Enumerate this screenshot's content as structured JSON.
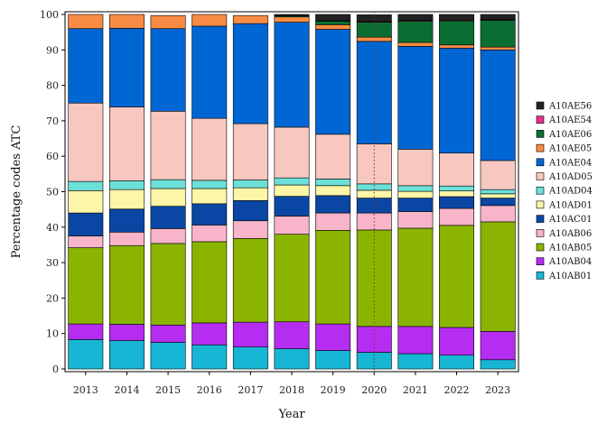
{
  "chart_data": {
    "type": "bar",
    "stacked": true,
    "title": "",
    "xlabel": "Year",
    "ylabel": "Percentage codes ATC",
    "ylim": [
      0,
      100
    ],
    "yticks": [
      0,
      10,
      20,
      30,
      40,
      50,
      60,
      70,
      80,
      90,
      100
    ],
    "categories": [
      "2013",
      "2014",
      "2015",
      "2016",
      "2017",
      "2018",
      "2019",
      "2020",
      "2021",
      "2022",
      "2023"
    ],
    "reference_line": {
      "x": "2020",
      "style": "dotted",
      "color": "#8b2a2a"
    },
    "grid": false,
    "legend_position": "right",
    "series": [
      {
        "name": "A10AB01",
        "color": "#17b6d4",
        "values": [
          8.3,
          8.0,
          7.5,
          6.8,
          6.2,
          5.7,
          5.2,
          4.7,
          4.3,
          3.9,
          2.6
        ]
      },
      {
        "name": "A10AB04",
        "color": "#b52df0",
        "values": [
          4.4,
          4.6,
          4.9,
          6.2,
          7.0,
          7.6,
          7.5,
          7.3,
          7.7,
          7.8,
          8.0
        ]
      },
      {
        "name": "A10AB05",
        "color": "#8ab400",
        "values": [
          21.5,
          22.2,
          23.0,
          22.9,
          23.6,
          24.7,
          26.4,
          27.2,
          27.7,
          28.8,
          30.9
        ]
      },
      {
        "name": "A10AB06",
        "color": "#f8b4c8",
        "values": [
          3.3,
          3.8,
          4.2,
          4.7,
          5.0,
          5.1,
          4.9,
          4.8,
          4.7,
          4.8,
          4.6
        ]
      },
      {
        "name": "A10AC01",
        "color": "#0a47a4",
        "values": [
          6.5,
          6.5,
          6.3,
          6.0,
          5.7,
          5.6,
          4.9,
          4.2,
          3.8,
          3.3,
          2.1
        ]
      },
      {
        "name": "A10AD01",
        "color": "#fdf6a8",
        "values": [
          6.3,
          5.5,
          5.0,
          4.3,
          3.6,
          3.2,
          2.8,
          2.2,
          1.9,
          1.6,
          1.2
        ]
      },
      {
        "name": "A10AD04",
        "color": "#6be0d8",
        "values": [
          2.6,
          2.5,
          2.5,
          2.3,
          2.2,
          2.0,
          1.9,
          1.8,
          1.6,
          1.4,
          1.2
        ]
      },
      {
        "name": "A10AD05",
        "color": "#f8c8c0",
        "values": [
          22.1,
          20.8,
          19.3,
          17.5,
          15.9,
          14.3,
          12.6,
          11.3,
          10.3,
          9.3,
          8.2
        ]
      },
      {
        "name": "A10AE04",
        "color": "#0066d4",
        "values": [
          21.0,
          22.2,
          23.3,
          26.0,
          28.2,
          29.6,
          29.6,
          28.9,
          29.0,
          29.6,
          31.2
        ]
      },
      {
        "name": "A10AE05",
        "color": "#f88c44",
        "values": [
          4.0,
          3.9,
          3.7,
          3.3,
          2.3,
          1.5,
          1.3,
          1.2,
          1.1,
          0.9,
          0.8
        ]
      },
      {
        "name": "A10AE06",
        "color": "#0a6e32",
        "values": [
          0,
          0,
          0,
          0,
          0,
          0.3,
          1.0,
          4.2,
          6.0,
          6.8,
          7.5
        ]
      },
      {
        "name": "A10AE54",
        "color": "#e8308c",
        "values": [
          0,
          0,
          0,
          0,
          0,
          0,
          0.1,
          0.2,
          0.2,
          0.2,
          0.2
        ]
      },
      {
        "name": "A10AE56",
        "color": "#222222",
        "values": [
          0,
          0,
          0,
          0,
          0,
          0.4,
          1.8,
          1.9,
          1.7,
          1.6,
          1.5
        ]
      }
    ]
  }
}
